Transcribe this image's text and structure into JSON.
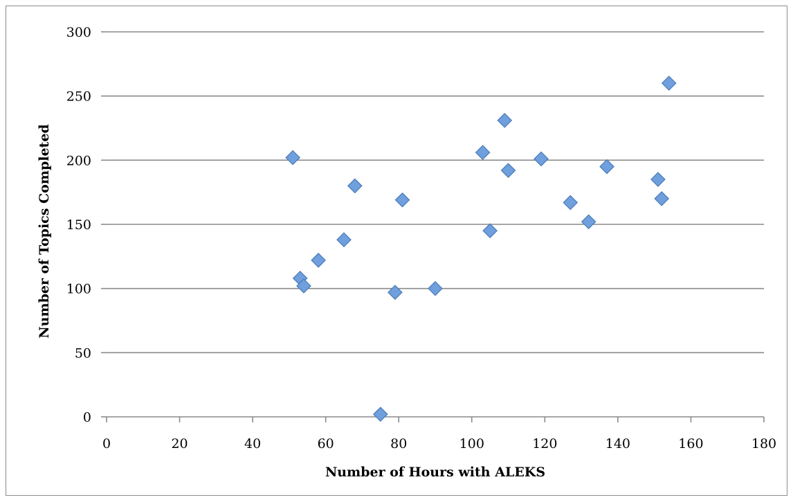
{
  "chart_data": {
    "type": "scatter",
    "title": "",
    "xlabel": "Number of Hours with ALEKS",
    "ylabel": "Number of Topics Completed",
    "xlim": [
      0,
      180
    ],
    "ylim": [
      0,
      300
    ],
    "xticks": [
      0,
      20,
      40,
      60,
      80,
      100,
      120,
      140,
      160,
      180
    ],
    "yticks": [
      0,
      50,
      100,
      150,
      200,
      250,
      300
    ],
    "grid": "horizontal",
    "legend": "none",
    "marker": "diamond",
    "colors": {
      "marker_fill": "#6f9fdc",
      "marker_stroke": "#4a7ab8",
      "grid": "#8a8a8a",
      "axis": "#8a8a8a"
    },
    "series": [
      {
        "x": [
          51,
          53,
          54,
          58,
          65,
          68,
          75,
          79,
          81,
          90,
          103,
          105,
          109,
          110,
          119,
          127,
          132,
          137,
          151,
          152,
          154
        ],
        "y": [
          202,
          108,
          102,
          122,
          138,
          180,
          2,
          97,
          169,
          100,
          206,
          145,
          231,
          192,
          201,
          167,
          152,
          195,
          185,
          170,
          260
        ]
      }
    ]
  }
}
